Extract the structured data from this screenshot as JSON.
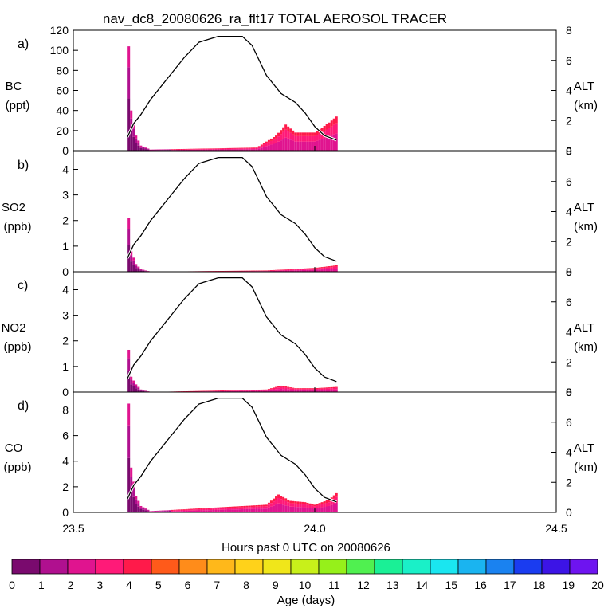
{
  "title": "nav_dc8_20080626_ra_flt17 TOTAL AEROSOL TRACER",
  "xlabel": "Hours past 0 UTC on 20080626",
  "x_ticks": [
    "23.5",
    "24.0",
    "24.5"
  ],
  "colorbar": {
    "label": "Age (days)",
    "ticks": [
      "0",
      "1",
      "2",
      "3",
      "4",
      "5",
      "6",
      "7",
      "8",
      "9",
      "10",
      "11",
      "12",
      "13",
      "14",
      "15",
      "16",
      "17",
      "18",
      "19",
      "20"
    ],
    "colors": [
      "#7a0a6e",
      "#b0108f",
      "#e0148f",
      "#ff1a78",
      "#ff1a4a",
      "#ff5a1a",
      "#ff8c1a",
      "#ffb81a",
      "#ffd21a",
      "#f0e61a",
      "#c8f01a",
      "#96f01a",
      "#50f050",
      "#1af096",
      "#1af0c8",
      "#1ae6f0",
      "#1ab4f0",
      "#1a82f0",
      "#1a3cf0",
      "#3c14e6",
      "#6e14f0"
    ]
  },
  "chart_data": [
    {
      "type": "area",
      "panel": "a)",
      "ylabel": "BC",
      "yunit": "(ppt)",
      "ylim": [
        0,
        120
      ],
      "yticks": [
        "0",
        "20",
        "40",
        "60",
        "80",
        "100",
        "120"
      ],
      "y2label": "ALT",
      "y2unit": "(km)",
      "y2lim": [
        0,
        8
      ],
      "y2ticks": [
        "0",
        "2",
        "4",
        "6",
        "8"
      ],
      "xlim": [
        23.5,
        24.5
      ],
      "species_peak": [
        [
          23.612,
          88
        ],
        [
          23.615,
          104
        ],
        [
          23.62,
          40
        ],
        [
          23.63,
          15
        ],
        [
          23.64,
          5
        ],
        [
          23.66,
          1
        ],
        [
          23.88,
          3
        ],
        [
          23.92,
          15
        ],
        [
          23.94,
          26
        ],
        [
          23.96,
          18
        ],
        [
          24.0,
          18
        ],
        [
          24.03,
          28
        ],
        [
          24.045,
          34
        ]
      ]
    },
    {
      "type": "area",
      "panel": "b)",
      "ylabel": "SO2",
      "yunit": "(ppb)",
      "ylim": [
        0,
        4.7
      ],
      "yticks": [
        "0",
        "1",
        "2",
        "3",
        "4"
      ],
      "y2label": "ALT",
      "y2unit": "(km)",
      "y2lim": [
        0,
        8
      ],
      "y2ticks": [
        "0",
        "2",
        "4",
        "6",
        "8"
      ],
      "xlim": [
        23.5,
        24.5
      ],
      "species_peak": [
        [
          23.612,
          1.9
        ],
        [
          23.615,
          2.1
        ],
        [
          23.62,
          0.8
        ],
        [
          23.63,
          0.3
        ],
        [
          23.64,
          0.1
        ],
        [
          23.66,
          0.0
        ],
        [
          23.9,
          0.05
        ],
        [
          23.95,
          0.1
        ],
        [
          24.0,
          0.15
        ],
        [
          24.045,
          0.25
        ]
      ]
    },
    {
      "type": "area",
      "panel": "c)",
      "ylabel": "NO2",
      "yunit": "(ppb)",
      "ylim": [
        0,
        4.7
      ],
      "yticks": [
        "0",
        "1",
        "2",
        "3",
        "4"
      ],
      "y2label": "ALT",
      "y2unit": "(km)",
      "y2lim": [
        0,
        8
      ],
      "y2ticks": [
        "0",
        "2",
        "4",
        "6",
        "8"
      ],
      "xlim": [
        23.5,
        24.5
      ],
      "species_peak": [
        [
          23.612,
          1.5
        ],
        [
          23.615,
          1.65
        ],
        [
          23.62,
          0.6
        ],
        [
          23.63,
          0.3
        ],
        [
          23.64,
          0.1
        ],
        [
          23.66,
          0.0
        ],
        [
          23.9,
          0.1
        ],
        [
          23.93,
          0.25
        ],
        [
          23.96,
          0.15
        ],
        [
          24.0,
          0.15
        ],
        [
          24.045,
          0.2
        ]
      ]
    },
    {
      "type": "area",
      "panel": "d)",
      "ylabel": "CO",
      "yunit": "(ppb)",
      "ylim": [
        0,
        9.4
      ],
      "yticks": [
        "0",
        "2",
        "4",
        "6",
        "8"
      ],
      "y2label": "ALT",
      "y2unit": "(km)",
      "y2lim": [
        0,
        8
      ],
      "y2ticks": [
        "0",
        "2",
        "4",
        "6",
        "8"
      ],
      "xlim": [
        23.5,
        24.5
      ],
      "species_peak": [
        [
          23.612,
          7.5
        ],
        [
          23.615,
          8.5
        ],
        [
          23.62,
          3.5
        ],
        [
          23.63,
          1.3
        ],
        [
          23.64,
          0.5
        ],
        [
          23.66,
          0.1
        ],
        [
          23.9,
          0.6
        ],
        [
          23.925,
          1.4
        ],
        [
          23.95,
          0.9
        ],
        [
          23.98,
          0.8
        ],
        [
          24.0,
          0.6
        ],
        [
          24.03,
          1.0
        ],
        [
          24.045,
          1.5
        ]
      ]
    }
  ],
  "altitude_km": [
    [
      23.612,
      0.9
    ],
    [
      23.625,
      1.8
    ],
    [
      23.64,
      2.4
    ],
    [
      23.66,
      3.4
    ],
    [
      23.7,
      5.0
    ],
    [
      23.73,
      6.2
    ],
    [
      23.76,
      7.2
    ],
    [
      23.8,
      7.6
    ],
    [
      23.85,
      7.6
    ],
    [
      23.87,
      7.0
    ],
    [
      23.9,
      5.0
    ],
    [
      23.93,
      3.8
    ],
    [
      23.96,
      3.2
    ],
    [
      23.98,
      2.5
    ],
    [
      24.0,
      1.6
    ],
    [
      24.02,
      1.0
    ],
    [
      24.045,
      0.7
    ]
  ]
}
